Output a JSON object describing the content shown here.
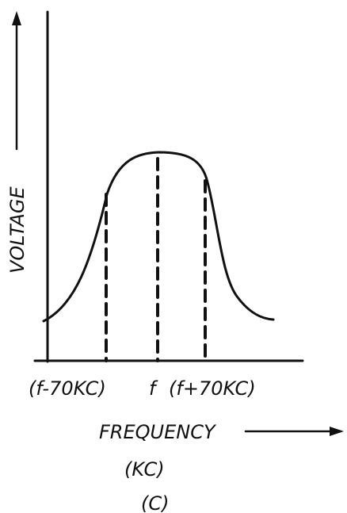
{
  "axis_labels": {
    "y": "VOLTAGE",
    "x": "FREQUENCY",
    "x_unit": "(KC)"
  },
  "markers": [
    "(f-70KC)",
    "f",
    "(f+70KC)"
  ],
  "caption": "(C)"
}
